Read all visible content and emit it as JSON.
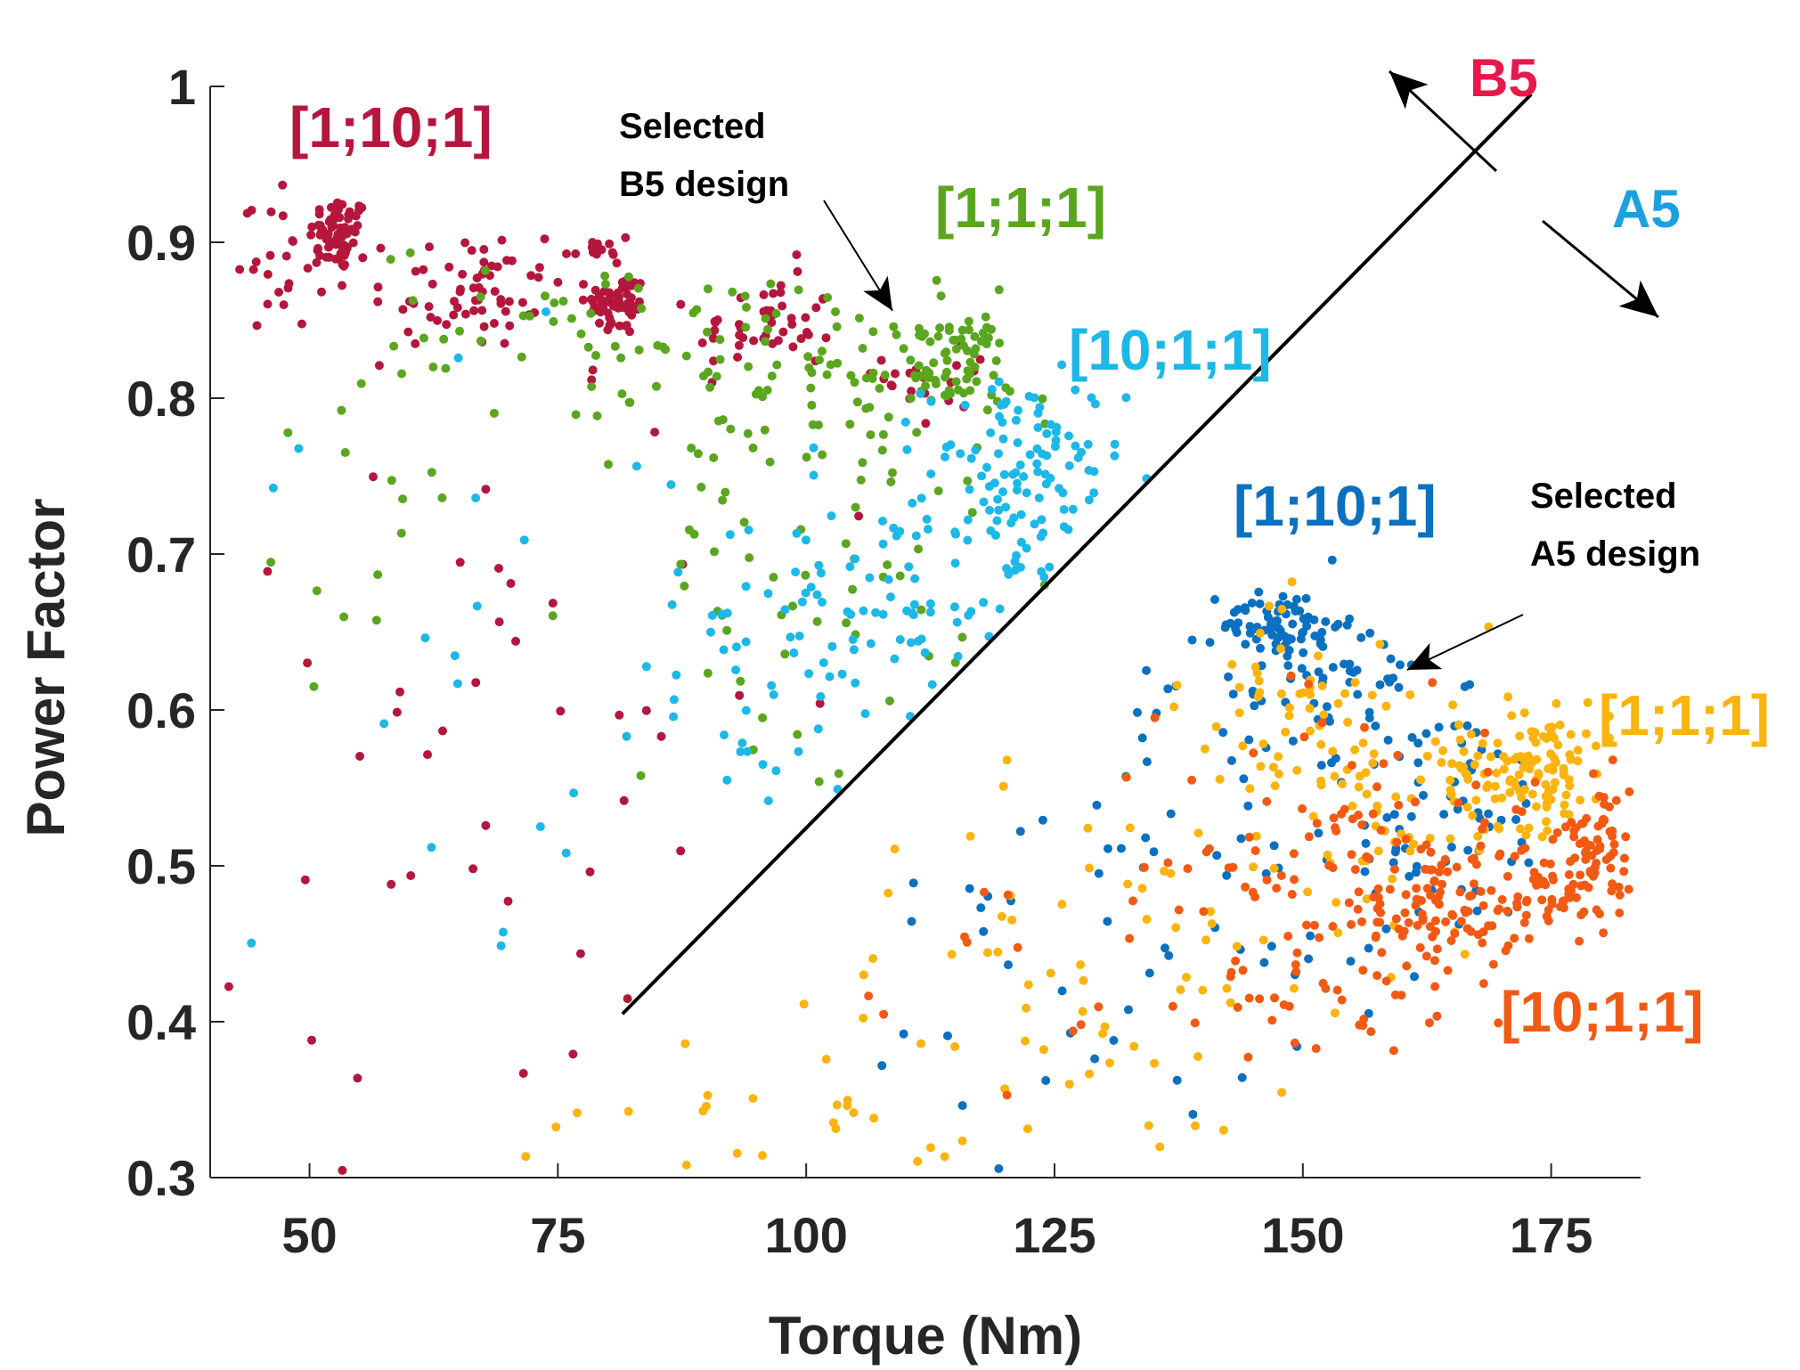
{
  "chart_data": {
    "type": "scatter",
    "title": "",
    "xlabel": "Torque (Nm)",
    "ylabel": "Power Factor",
    "xlim": [
      40,
      184
    ],
    "ylim": [
      0.3,
      1.0
    ],
    "xticks": [
      50,
      75,
      100,
      125,
      150,
      175
    ],
    "yticks": [
      0.3,
      0.4,
      0.5,
      0.6,
      0.7,
      0.8,
      0.9,
      1
    ],
    "ytick_labels": [
      "0.3",
      "0.4",
      "0.5",
      "0.6",
      "0.7",
      "0.8",
      "0.9",
      "1"
    ],
    "regions": [
      {
        "name": "B5",
        "color": "#e8184a"
      },
      {
        "name": "A5",
        "color": "#1ba1e2"
      }
    ],
    "selected_labels": [
      {
        "line1": "Selected",
        "line2": "B5 design",
        "x": 108.5,
        "y": 0.855
      },
      {
        "line1": "Selected",
        "line2": "A5 design",
        "x": 160.5,
        "y": 0.62
      }
    ],
    "divider": {
      "x1": 81.5,
      "y1": 0.405,
      "x2": 173,
      "y2": 0.995
    },
    "series": [
      {
        "name": "[1;10;1]",
        "group": "B5",
        "color": "#b5163c",
        "clusters": [
          {
            "cx": 53,
            "cy": 0.905,
            "sx": 1.5,
            "sy": 0.012,
            "n": 60
          },
          {
            "cx": 66,
            "cy": 0.87,
            "sx": 5,
            "sy": 0.02,
            "n": 60
          },
          {
            "cx": 81,
            "cy": 0.86,
            "sx": 1.6,
            "sy": 0.01,
            "n": 60
          },
          {
            "cx": 96,
            "cy": 0.845,
            "sx": 3.5,
            "sy": 0.015,
            "n": 45
          },
          {
            "cx": 47,
            "cy": 0.895,
            "sx": 3.5,
            "sy": 0.025,
            "n": 35
          },
          {
            "cx": 79,
            "cy": 0.895,
            "sx": 1.8,
            "sy": 0.008,
            "n": 15
          },
          {
            "cx": 114,
            "cy": 0.815,
            "sx": 3,
            "sy": 0.02,
            "n": 20
          },
          {
            "cx": 70,
            "cy": 0.6,
            "sx": 15,
            "sy": 0.15,
            "n": 55
          }
        ]
      },
      {
        "name": "[1;1;1]",
        "group": "B5",
        "color": "#5aa61e",
        "clusters": [
          {
            "cx": 114,
            "cy": 0.82,
            "sx": 3.5,
            "sy": 0.018,
            "n": 80
          },
          {
            "cx": 100,
            "cy": 0.81,
            "sx": 9,
            "sy": 0.03,
            "n": 60
          },
          {
            "cx": 80,
            "cy": 0.84,
            "sx": 12,
            "sy": 0.03,
            "n": 50
          },
          {
            "cx": 100,
            "cy": 0.69,
            "sx": 8,
            "sy": 0.07,
            "n": 60
          },
          {
            "cx": 60,
            "cy": 0.74,
            "sx": 10,
            "sy": 0.08,
            "n": 20
          }
        ]
      },
      {
        "name": "[10;1;1]",
        "group": "B5",
        "color": "#1cb8e8",
        "clusters": [
          {
            "cx": 122,
            "cy": 0.745,
            "sx": 5,
            "sy": 0.035,
            "n": 120
          },
          {
            "cx": 108,
            "cy": 0.66,
            "sx": 7,
            "sy": 0.045,
            "n": 80
          },
          {
            "cx": 92,
            "cy": 0.65,
            "sx": 8,
            "sy": 0.06,
            "n": 35
          },
          {
            "cx": 65,
            "cy": 0.6,
            "sx": 10,
            "sy": 0.14,
            "n": 20
          }
        ]
      },
      {
        "name": "[1;10;1]",
        "group": "A5",
        "color": "#0a70c0",
        "clusters": [
          {
            "cx": 148,
            "cy": 0.655,
            "sx": 3,
            "sy": 0.012,
            "n": 70
          },
          {
            "cx": 153,
            "cy": 0.62,
            "sx": 6,
            "sy": 0.022,
            "n": 50
          },
          {
            "cx": 163,
            "cy": 0.535,
            "sx": 7,
            "sy": 0.04,
            "n": 70
          },
          {
            "cx": 145,
            "cy": 0.49,
            "sx": 10,
            "sy": 0.07,
            "n": 45
          },
          {
            "cx": 125,
            "cy": 0.44,
            "sx": 10,
            "sy": 0.07,
            "n": 25
          }
        ]
      },
      {
        "name": "[1;1;1]",
        "group": "A5",
        "color": "#fbb40d",
        "clusters": [
          {
            "cx": 173,
            "cy": 0.565,
            "sx": 4,
            "sy": 0.02,
            "n": 110
          },
          {
            "cx": 160,
            "cy": 0.55,
            "sx": 8,
            "sy": 0.04,
            "n": 80
          },
          {
            "cx": 148,
            "cy": 0.61,
            "sx": 4,
            "sy": 0.03,
            "n": 35
          },
          {
            "cx": 135,
            "cy": 0.44,
            "sx": 12,
            "sy": 0.07,
            "n": 50
          },
          {
            "cx": 95,
            "cy": 0.33,
            "sx": 14,
            "sy": 0.04,
            "n": 30
          },
          {
            "cx": 120,
            "cy": 0.42,
            "sx": 10,
            "sy": 0.06,
            "n": 20
          }
        ]
      },
      {
        "name": "[10;1;1]",
        "group": "A5",
        "color": "#f25a14",
        "clusters": [
          {
            "cx": 180,
            "cy": 0.515,
            "sx": 2,
            "sy": 0.02,
            "n": 60
          },
          {
            "cx": 175,
            "cy": 0.48,
            "sx": 3.5,
            "sy": 0.02,
            "n": 60
          },
          {
            "cx": 164,
            "cy": 0.47,
            "sx": 3.5,
            "sy": 0.02,
            "n": 60
          },
          {
            "cx": 158,
            "cy": 0.51,
            "sx": 8,
            "sy": 0.045,
            "n": 100
          },
          {
            "cx": 147,
            "cy": 0.44,
            "sx": 7,
            "sy": 0.04,
            "n": 45
          },
          {
            "cx": 125,
            "cy": 0.45,
            "sx": 12,
            "sy": 0.09,
            "n": 20
          }
        ]
      }
    ]
  }
}
